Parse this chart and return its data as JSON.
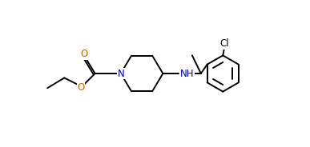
{
  "bg_color": "#ffffff",
  "line_color": "#000000",
  "N_color": "#0000cd",
  "O_color": "#cc6600",
  "Cl_color": "#000000",
  "lw": 1.4,
  "fs": 8.5,
  "fig_width": 3.87,
  "fig_height": 1.84,
  "dpi": 100,
  "xlim": [
    0,
    10
  ],
  "ylim": [
    0,
    5
  ]
}
